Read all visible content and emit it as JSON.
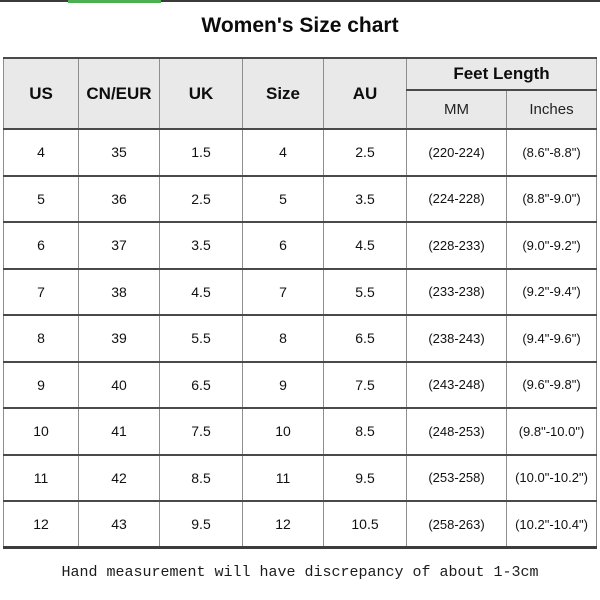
{
  "page": {
    "title": "Women's Size chart",
    "footer_note": "Hand measurement will have discrepancy of about 1-3cm"
  },
  "table": {
    "columns": [
      "US",
      "CN/EUR",
      "UK",
      "Size",
      "AU"
    ],
    "feet_length": {
      "label": "Feet Length",
      "sub_columns": [
        "MM",
        "Inches"
      ]
    },
    "rows": [
      [
        "4",
        "35",
        "1.5",
        "4",
        "2.5",
        "(220-224)",
        "(8.6\"-8.8\")"
      ],
      [
        "5",
        "36",
        "2.5",
        "5",
        "3.5",
        "(224-228)",
        "(8.8\"-9.0\")"
      ],
      [
        "6",
        "37",
        "3.5",
        "6",
        "4.5",
        "(228-233)",
        "(9.0\"-9.2\")"
      ],
      [
        "7",
        "38",
        "4.5",
        "7",
        "5.5",
        "(233-238)",
        "(9.2\"-9.4\")"
      ],
      [
        "8",
        "39",
        "5.5",
        "8",
        "6.5",
        "(238-243)",
        "(9.4\"-9.6\")"
      ],
      [
        "9",
        "40",
        "6.5",
        "9",
        "7.5",
        "(243-248)",
        "(9.6\"-9.8\")"
      ],
      [
        "10",
        "41",
        "7.5",
        "10",
        "8.5",
        "(248-253)",
        "(9.8\"-10.0\")"
      ],
      [
        "11",
        "42",
        "8.5",
        "11",
        "9.5",
        "(253-258)",
        "(10.0\"-10.2\")"
      ],
      [
        "12",
        "43",
        "9.5",
        "12",
        "10.5",
        "(258-263)",
        "(10.2\"-10.4\")"
      ]
    ]
  },
  "colors": {
    "header_background": "#e9e9e9",
    "grid_vertical": "#8e8e8e",
    "grid_horizontal": "#4a4a4a",
    "outer_border": "#3c3c3c",
    "top_accent_green": "#4caf50",
    "top_line": "#3a3a3a",
    "text": "#111111"
  }
}
